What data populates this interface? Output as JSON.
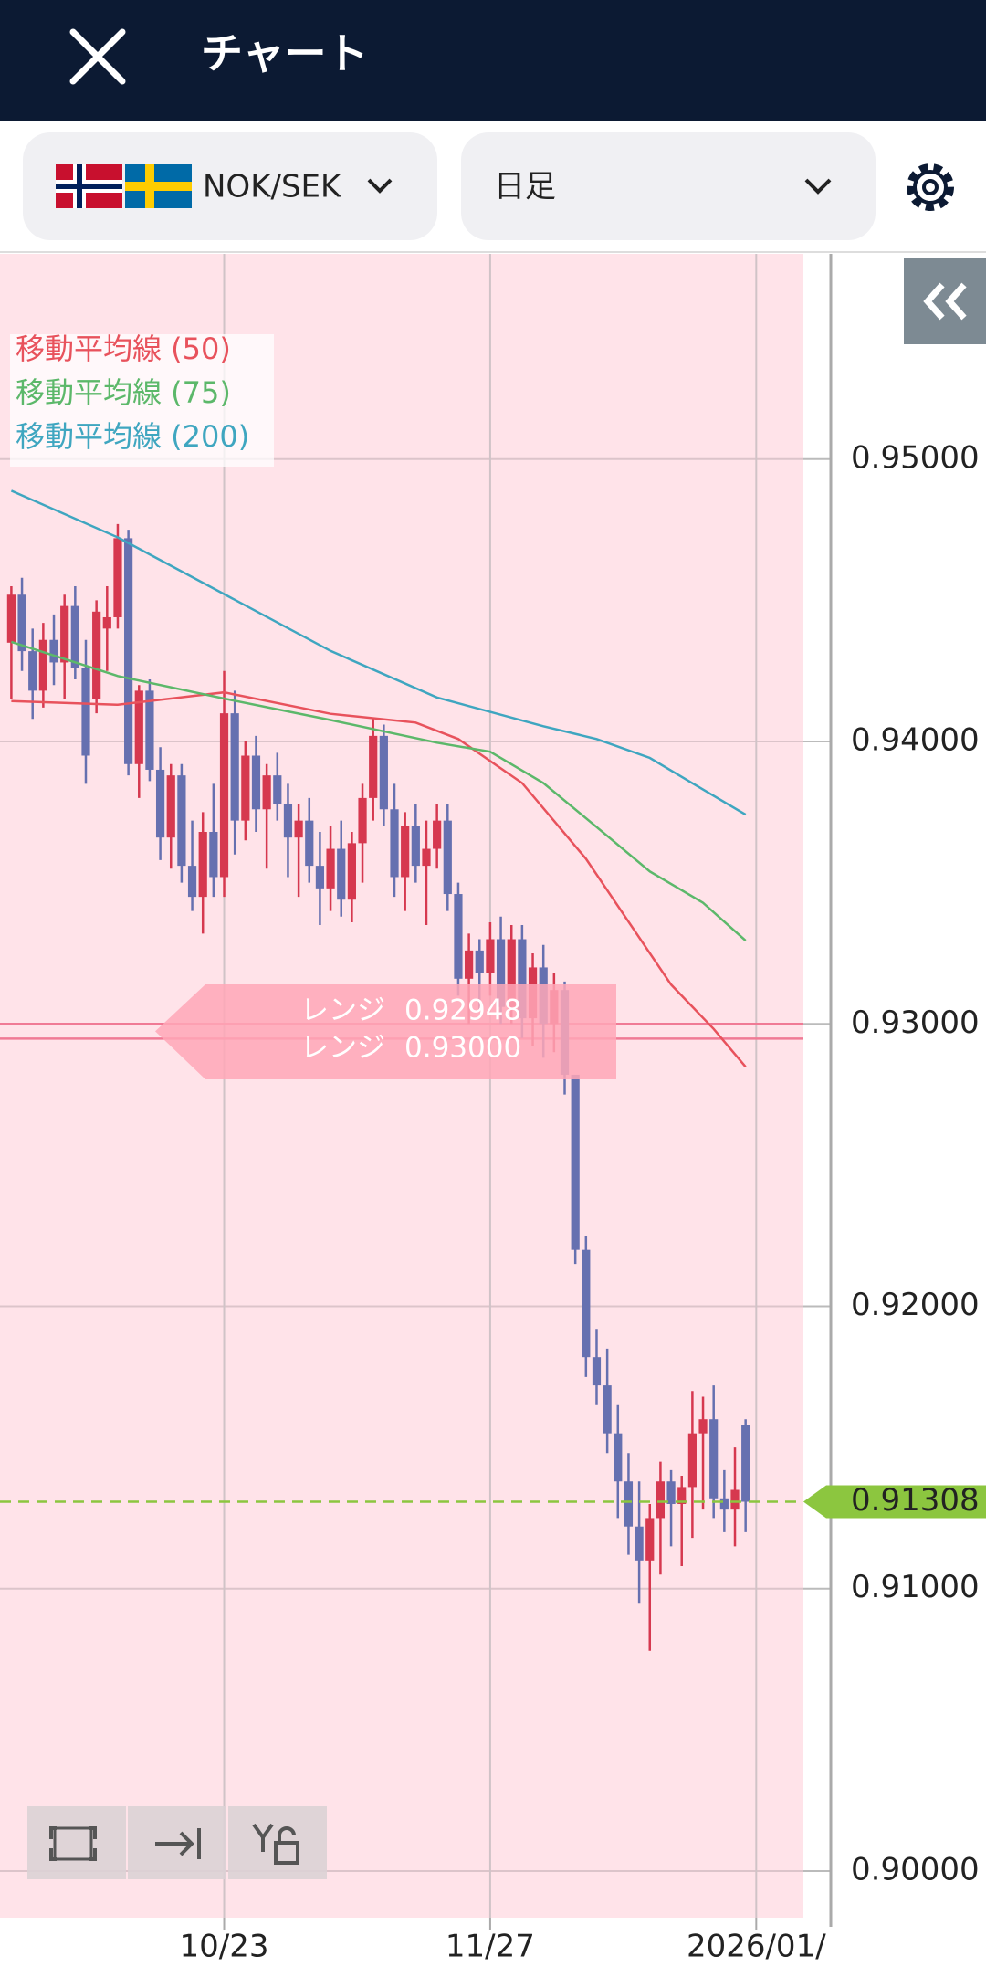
{
  "header": {
    "title": "チャート"
  },
  "selector": {
    "pair": "NOK/SEK",
    "timeframe": "日足"
  },
  "chart_data": {
    "type": "candlestick",
    "categories": [
      null,
      null,
      null,
      null,
      null,
      null,
      null,
      null,
      null,
      null,
      null,
      null,
      null,
      null,
      null,
      null,
      null,
      null,
      null,
      null,
      "10/23",
      null,
      null,
      null,
      null,
      null,
      null,
      null,
      null,
      null,
      null,
      null,
      null,
      null,
      null,
      null,
      null,
      null,
      null,
      null,
      null,
      null,
      null,
      null,
      null,
      "11/27",
      null,
      null,
      null,
      null,
      null,
      null,
      null,
      null,
      null,
      null,
      null,
      null,
      null,
      null,
      null,
      null,
      null,
      null,
      null,
      null,
      null,
      null,
      null,
      null,
      "2026/01/"
    ],
    "open": [
      0.9435,
      0.9452,
      0.9432,
      0.9418,
      0.9436,
      0.9428,
      0.9448,
      0.9426,
      0.9415,
      0.944,
      0.9444,
      0.9472,
      0.9392,
      0.9418,
      0.939,
      0.9366,
      0.9388,
      0.9356,
      0.9345,
      0.9368,
      0.9352,
      0.941,
      0.9372,
      0.9395,
      0.9376,
      0.9388,
      0.9378,
      0.9366,
      0.9372,
      0.9356,
      0.9348,
      0.9362,
      0.9344,
      0.9364,
      0.938,
      0.9402,
      0.9376,
      0.9352,
      0.937,
      0.9356,
      0.9362,
      0.9372,
      0.9346,
      0.9316,
      0.9326,
      0.9318,
      0.933,
      0.9306,
      0.933,
      0.9302,
      0.932,
      0.93,
      0.9312,
      0.9282,
      0.922,
      0.9182,
      0.9172,
      0.9155,
      0.9138,
      0.9122,
      0.911,
      0.9125,
      0.9138,
      0.913,
      0.9136,
      0.9155,
      0.916,
      0.9132,
      0.9128,
      0.9158,
      null
    ],
    "high": [
      0.9455,
      0.9458,
      0.944,
      0.9442,
      0.9445,
      0.9452,
      0.9455,
      0.9436,
      0.945,
      0.9455,
      0.9477,
      0.9475,
      0.942,
      0.9422,
      0.9398,
      0.9392,
      0.9392,
      0.9372,
      0.9375,
      0.9385,
      0.9425,
      0.9418,
      0.94,
      0.9402,
      0.9392,
      0.9396,
      0.9385,
      0.9378,
      0.938,
      0.9368,
      0.937,
      0.9372,
      0.9368,
      0.9385,
      0.9408,
      0.9406,
      0.9385,
      0.9375,
      0.9378,
      0.9372,
      0.9378,
      0.9378,
      0.935,
      0.9332,
      0.933,
      0.9336,
      0.9338,
      0.9335,
      0.9335,
      0.9325,
      0.9328,
      0.9318,
      0.9315,
      0.9282,
      0.9225,
      0.9192,
      0.9185,
      0.9165,
      0.9148,
      0.9138,
      0.913,
      0.9145,
      0.9142,
      0.914,
      0.917,
      0.9168,
      0.9172,
      0.9142,
      0.915,
      0.916,
      null
    ],
    "low": [
      0.9415,
      0.9425,
      0.9408,
      0.9412,
      0.942,
      0.9415,
      0.9422,
      0.9385,
      0.941,
      0.9425,
      0.944,
      0.9388,
      0.938,
      0.9386,
      0.9358,
      0.9355,
      0.935,
      0.934,
      0.9332,
      0.9345,
      0.9345,
      0.936,
      0.9365,
      0.9368,
      0.9355,
      0.9372,
      0.9352,
      0.9345,
      0.935,
      0.9335,
      0.934,
      0.9338,
      0.9336,
      0.935,
      0.9372,
      0.937,
      0.9345,
      0.934,
      0.935,
      0.9335,
      0.9355,
      0.934,
      0.931,
      0.93,
      0.9305,
      0.931,
      0.93,
      0.93,
      0.9295,
      0.9292,
      0.9288,
      0.929,
      0.9275,
      0.9215,
      0.9175,
      0.9165,
      0.9148,
      0.9125,
      0.9112,
      0.9095,
      0.9078,
      0.9105,
      0.9115,
      0.9108,
      0.9118,
      0.9128,
      0.9125,
      0.912,
      0.9115,
      0.912,
      null
    ],
    "close": [
      0.9452,
      0.9432,
      0.9418,
      0.9436,
      0.9428,
      0.9448,
      0.9426,
      0.9395,
      0.9446,
      0.9444,
      0.9472,
      0.9392,
      0.9418,
      0.939,
      0.9366,
      0.9388,
      0.9356,
      0.9345,
      0.9368,
      0.9352,
      0.941,
      0.9372,
      0.9395,
      0.9376,
      0.9388,
      0.9378,
      0.9366,
      0.9372,
      0.9356,
      0.9348,
      0.9362,
      0.9344,
      0.9364,
      0.938,
      0.9402,
      0.9376,
      0.9352,
      0.937,
      0.9356,
      0.9362,
      0.9372,
      0.9346,
      0.9316,
      0.9326,
      0.9318,
      0.933,
      0.9306,
      0.933,
      0.9302,
      0.932,
      0.93,
      0.9312,
      0.9282,
      0.922,
      0.9182,
      0.9172,
      0.9155,
      0.9138,
      0.9122,
      0.911,
      0.9125,
      0.9138,
      0.913,
      0.9136,
      0.9155,
      0.916,
      0.9132,
      0.9128,
      0.9135,
      0.91308,
      null
    ],
    "up_color": "#d6384f",
    "down_color": "#6670b0",
    "series": [
      {
        "name": "移動平均線 (50)",
        "color": "#e8525c",
        "x": [
          0,
          10,
          20,
          30,
          38,
          42,
          48,
          54,
          58,
          62,
          66,
          69
        ],
        "values": [
          0.94143,
          0.9413,
          0.94174,
          0.94098,
          0.94067,
          0.94009,
          0.93853,
          0.93585,
          0.93362,
          0.93139,
          0.92982,
          0.92848
        ]
      },
      {
        "name": "移動平均線 (75)",
        "color": "#5cb86a",
        "x": [
          0,
          10,
          20,
          30,
          40,
          45,
          50,
          55,
          60,
          65,
          69
        ],
        "values": [
          0.94353,
          0.94232,
          0.94152,
          0.94076,
          0.93996,
          0.93964,
          0.93853,
          0.93697,
          0.9354,
          0.93429,
          0.93295
        ]
      },
      {
        "name": "移動平均線 (200)",
        "color": "#3fa6c0",
        "x": [
          0,
          10,
          20,
          30,
          40,
          50,
          55,
          60,
          65,
          69
        ],
        "values": [
          0.94888,
          0.94723,
          0.94522,
          0.94321,
          0.94156,
          0.94054,
          0.94009,
          0.93942,
          0.9383,
          0.93741
        ]
      }
    ],
    "range_lines": {
      "label": [
        "レンジ",
        "レンジ"
      ],
      "values": [
        0.92948,
        0.93
      ],
      "value_labels": [
        "0.92948",
        "0.93000"
      ]
    },
    "current_price": 0.91308,
    "ylim": [
      0.89835,
      0.95727
    ],
    "yticks": [
      {
        "value": 0.9,
        "label": "0.90000"
      },
      {
        "value": 0.91,
        "label": "0.91000"
      },
      {
        "value": 0.92,
        "label": "0.92000"
      },
      {
        "value": 0.93,
        "label": "0.93000"
      },
      {
        "value": 0.94,
        "label": "0.94000"
      },
      {
        "value": 0.95,
        "label": "0.95000"
      }
    ],
    "grid": true
  }
}
